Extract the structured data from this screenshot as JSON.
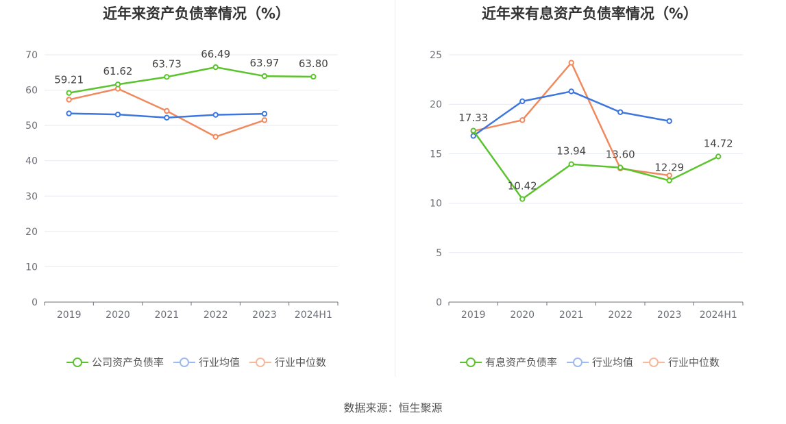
{
  "chart_data": [
    {
      "type": "line",
      "title": "近年来资产负债率情况（%）",
      "categories": [
        "2019",
        "2020",
        "2021",
        "2022",
        "2023",
        "2024H1"
      ],
      "ylim": [
        0,
        70
      ],
      "yticks": [
        0,
        10,
        20,
        30,
        40,
        50,
        60,
        70
      ],
      "grid": true,
      "legend_position": "bottom",
      "series": [
        {
          "name": "公司资产负债率",
          "color": "#5bc32d",
          "values": [
            59.21,
            61.62,
            63.73,
            66.49,
            63.97,
            63.8
          ],
          "labels": [
            "59.21",
            "61.62",
            "63.73",
            "66.49",
            "63.97",
            "63.80"
          ]
        },
        {
          "name": "行业均值",
          "color": "#3d76dd",
          "values": [
            53.4,
            53.1,
            52.2,
            53.0,
            53.3,
            null
          ]
        },
        {
          "name": "行业中位数",
          "color": "#f0895d",
          "values": [
            57.3,
            60.4,
            54.1,
            46.8,
            51.5,
            null
          ]
        }
      ]
    },
    {
      "type": "line",
      "title": "近年来有息资产负债率情况（%）",
      "categories": [
        "2019",
        "2020",
        "2021",
        "2022",
        "2023",
        "2024H1"
      ],
      "ylim": [
        0,
        25
      ],
      "yticks": [
        0,
        5,
        10,
        15,
        20,
        25
      ],
      "grid": true,
      "legend_position": "bottom",
      "series": [
        {
          "name": "有息资产负债率",
          "color": "#5bc32d",
          "values": [
            17.33,
            10.42,
            13.94,
            13.6,
            12.29,
            14.72
          ],
          "labels": [
            "17.33",
            "10.42",
            "13.94",
            "13.60",
            "12.29",
            "14.72"
          ]
        },
        {
          "name": "行业均值",
          "color": "#3d76dd",
          "values": [
            16.8,
            20.3,
            21.3,
            19.2,
            18.3,
            null
          ]
        },
        {
          "name": "行业中位数",
          "color": "#f0895d",
          "values": [
            17.3,
            18.4,
            24.2,
            13.5,
            12.8,
            null
          ]
        }
      ]
    }
  ],
  "source": "数据来源：恒生聚源"
}
